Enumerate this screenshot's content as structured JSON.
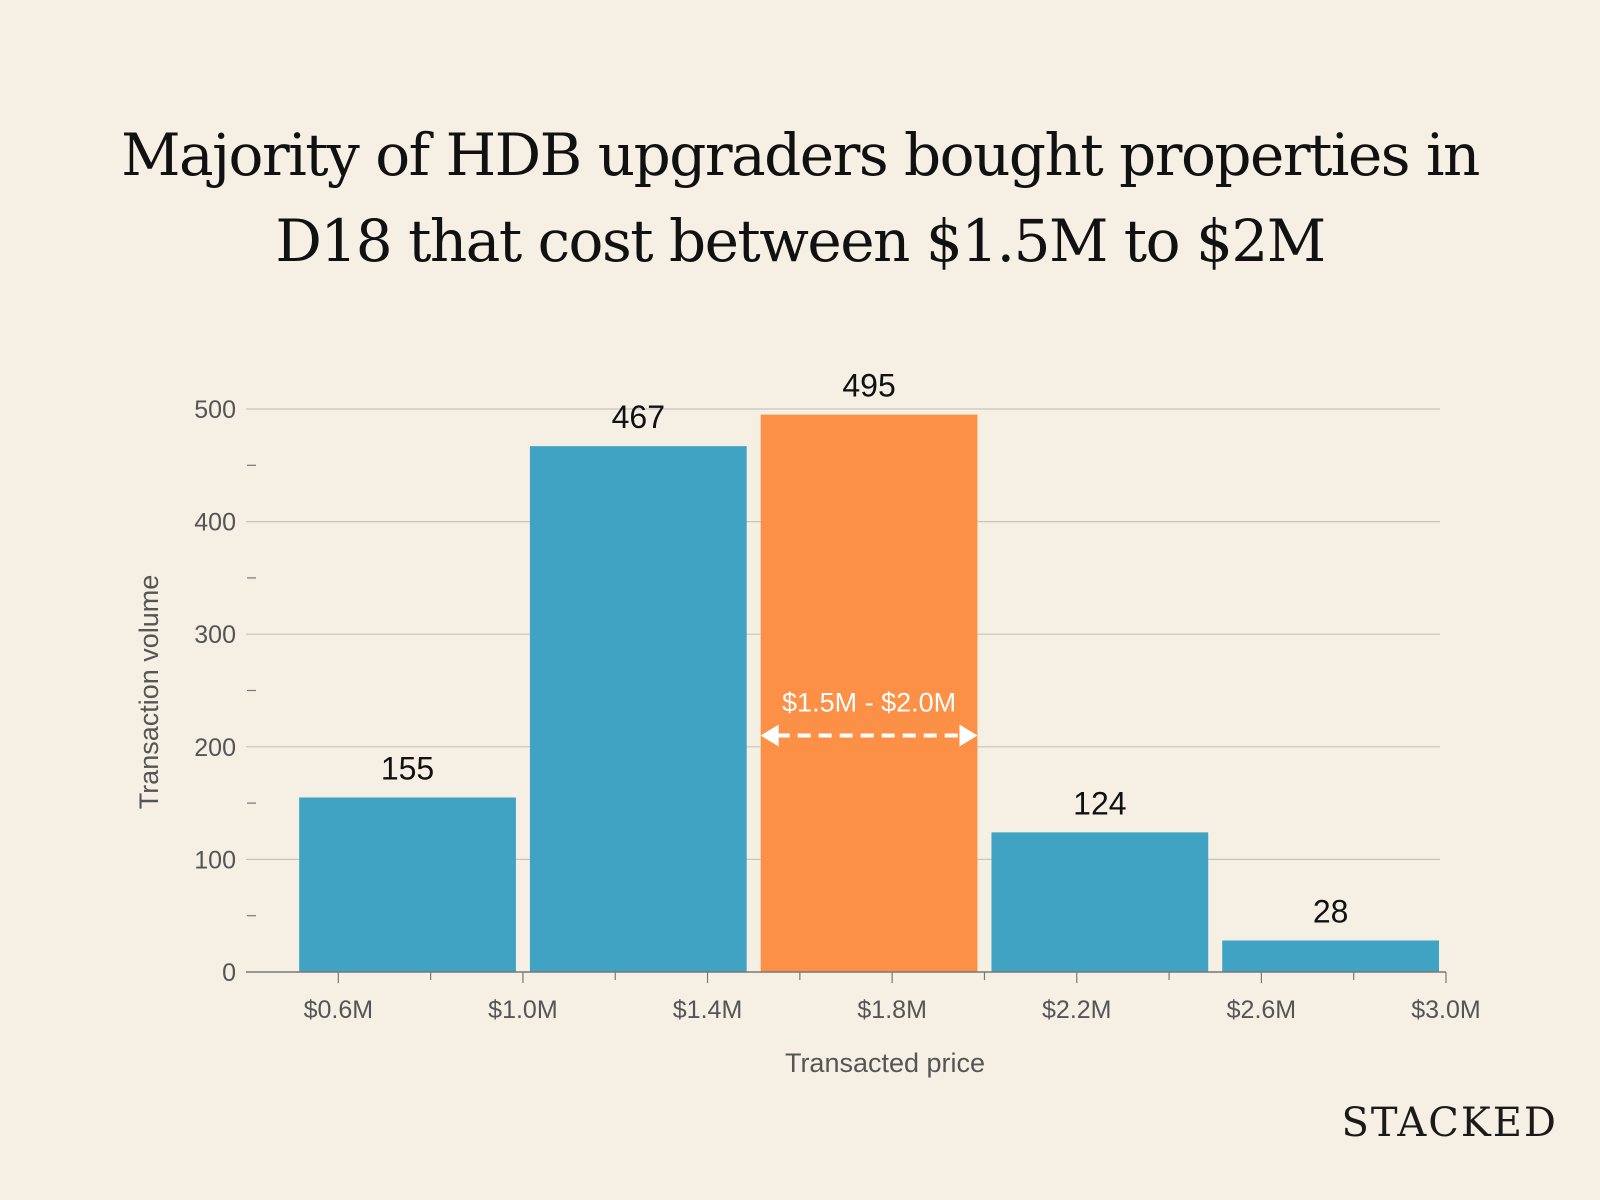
{
  "title_lines": [
    "Majority of HDB upgraders bought properties in",
    "D18 that cost between $1.5M to $2M"
  ],
  "brand": "STACKED",
  "colors": {
    "bar": "#41a3c3",
    "highlight": "#fb9046",
    "background": "#f6f0e4",
    "grid": "#c9c4ba",
    "annotation": "#ffffff"
  },
  "chart_data": {
    "type": "bar",
    "title": "Majority of HDB upgraders bought properties in D18 that cost between $1.5M to $2M",
    "xlabel": "Transacted price",
    "ylabel": "Transaction volume",
    "bins": [
      {
        "from": 0.5,
        "to": 1.0,
        "value": 155,
        "highlight": false
      },
      {
        "from": 1.0,
        "to": 1.5,
        "value": 467,
        "highlight": false
      },
      {
        "from": 1.5,
        "to": 2.0,
        "value": 495,
        "highlight": true
      },
      {
        "from": 2.0,
        "to": 2.5,
        "value": 124,
        "highlight": false
      },
      {
        "from": 2.5,
        "to": 3.0,
        "value": 28,
        "highlight": false
      }
    ],
    "xlim": [
      0.4,
      3.0
    ],
    "ylim": [
      0,
      500
    ],
    "yticks": [
      0,
      100,
      200,
      300,
      400,
      500
    ],
    "xticks": [
      {
        "value": 0.6,
        "label": "$0.6M"
      },
      {
        "value": 1.0,
        "label": "$1.0M"
      },
      {
        "value": 1.4,
        "label": "$1.4M"
      },
      {
        "value": 1.8,
        "label": "$1.8M"
      },
      {
        "value": 2.2,
        "label": "$2.2M"
      },
      {
        "value": 2.6,
        "label": "$2.6M"
      },
      {
        "value": 3.0,
        "label": "$3.0M"
      }
    ],
    "annotation": {
      "label": "$1.5M - $2.0M",
      "from": 1.5,
      "to": 2.0,
      "y": 210
    },
    "grid": true,
    "legend": "none"
  }
}
